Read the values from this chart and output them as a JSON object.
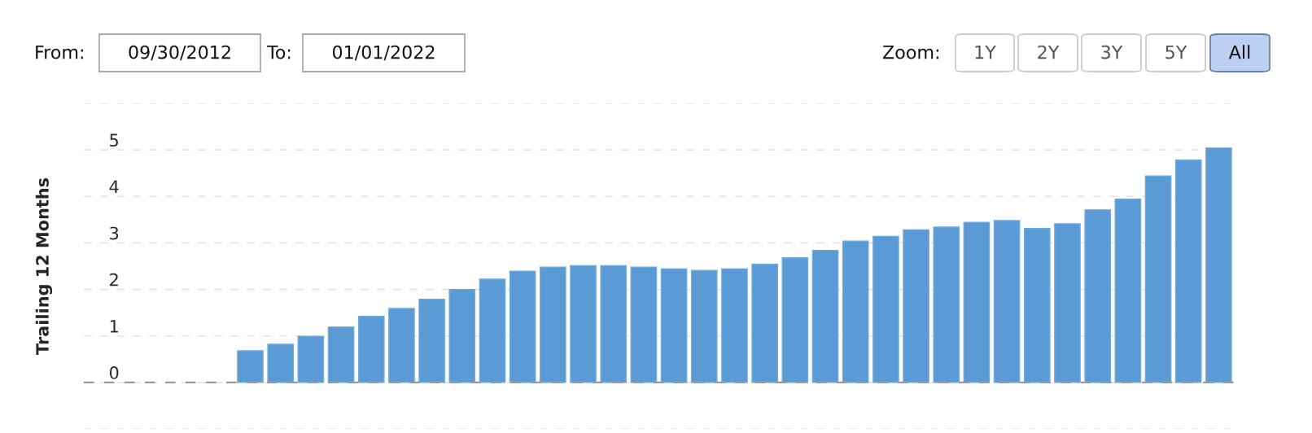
{
  "chart_data": {
    "type": "bar",
    "ylabel": "Trailing 12 Months",
    "categories": [
      null,
      null,
      null,
      null,
      null,
      null,
      null,
      null,
      null,
      null,
      null,
      null,
      null,
      null,
      null,
      null,
      null,
      null,
      null,
      null,
      null,
      null,
      null,
      null,
      null,
      null,
      null,
      null,
      null,
      null,
      null,
      null,
      null,
      null,
      null,
      null,
      null,
      null
    ],
    "values": [
      null,
      null,
      null,
      null,
      null,
      0.68,
      0.82,
      0.99,
      1.19,
      1.42,
      1.59,
      1.79,
      2.0,
      2.22,
      2.39,
      2.48,
      2.51,
      2.51,
      2.48,
      2.44,
      2.41,
      2.44,
      2.54,
      2.68,
      2.84,
      3.04,
      3.14,
      3.28,
      3.34,
      3.44,
      3.48,
      3.31,
      3.41,
      3.71,
      3.94,
      4.44,
      4.78,
      5.04
    ],
    "color": "#5b9bd5",
    "ylim": [
      -1,
      6
    ],
    "yticks": [
      {
        "value": -1,
        "label": null
      },
      0,
      1,
      2,
      3,
      4,
      5,
      {
        "value": 6,
        "label": null
      }
    ],
    "ref_lines": [
      {
        "axis": "y",
        "value": 0,
        "color": "#9a9a9a",
        "line_style": "dashed"
      }
    ],
    "grid": "y",
    "annotations": [
      "From:",
      "09/30/2012",
      "To:",
      "01/01/2022",
      "Zoom:",
      "1Y",
      "2Y",
      "3Y",
      "5Y",
      "All"
    ]
  }
}
